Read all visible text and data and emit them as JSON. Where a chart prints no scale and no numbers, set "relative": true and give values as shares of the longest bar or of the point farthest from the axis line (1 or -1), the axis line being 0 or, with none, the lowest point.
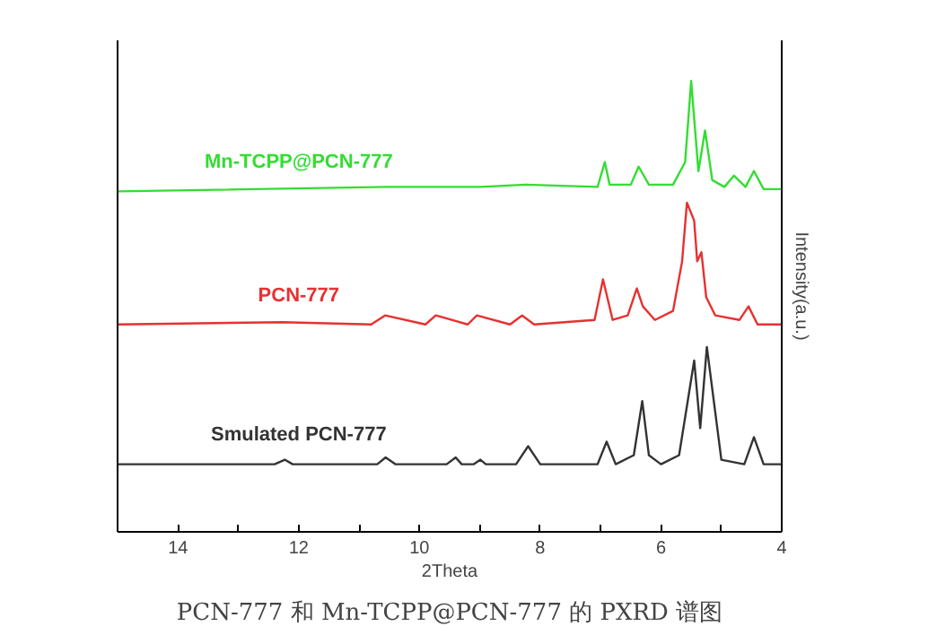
{
  "chart_data": {
    "type": "line",
    "relative": true,
    "title": "PCN-777 和 Mn-TCPP@PCN-777 的 PXRD 谱图",
    "xlabel": "2Theta",
    "ylabel": "Intensity(a.u.)",
    "xlim": [
      15,
      4
    ],
    "xticks": [
      {
        "value": 15,
        "label": null
      },
      14,
      {
        "value": 13,
        "label": null
      },
      12,
      {
        "value": 11,
        "label": null
      },
      10,
      {
        "value": 9,
        "label": null
      },
      8,
      {
        "value": 7,
        "label": null
      },
      6,
      {
        "value": 5,
        "label": null
      },
      4
    ],
    "grid": false,
    "line_style": "solid",
    "marker": "none",
    "series": [
      {
        "name": "Smulated PCN-777",
        "color": "#333333",
        "x": [
          4,
          4.3,
          4.46,
          4.62,
          5.0,
          5.24,
          5.35,
          5.45,
          5.7,
          6.0,
          6.2,
          6.31,
          6.45,
          6.75,
          6.9,
          7.05,
          8.0,
          8.2,
          8.4,
          8.9,
          8.99,
          9.1,
          9.3,
          9.4,
          9.55,
          10.4,
          10.56,
          10.7,
          12.1,
          12.23,
          12.4,
          15
        ],
        "values": [
          0.15,
          0.15,
          0.21,
          0.15,
          0.16,
          0.41,
          0.23,
          0.38,
          0.17,
          0.15,
          0.17,
          0.29,
          0.17,
          0.15,
          0.2,
          0.15,
          0.15,
          0.19,
          0.15,
          0.15,
          0.16,
          0.15,
          0.15,
          0.165,
          0.15,
          0.15,
          0.165,
          0.15,
          0.15,
          0.16,
          0.15,
          0.15
        ]
      },
      {
        "name": "PCN-777",
        "color": "#e83030",
        "x": [
          4,
          4.4,
          4.55,
          4.7,
          5.1,
          5.25,
          5.33,
          5.4,
          5.45,
          5.57,
          5.65,
          5.8,
          6.1,
          6.3,
          6.4,
          6.55,
          6.8,
          6.96,
          7.1,
          8.1,
          8.3,
          8.5,
          9.05,
          9.2,
          9.73,
          9.9,
          10.57,
          10.8,
          12.26,
          15
        ],
        "values": [
          0.46,
          0.46,
          0.5,
          0.47,
          0.48,
          0.52,
          0.62,
          0.6,
          0.69,
          0.73,
          0.6,
          0.49,
          0.47,
          0.5,
          0.54,
          0.48,
          0.47,
          0.56,
          0.47,
          0.46,
          0.48,
          0.46,
          0.48,
          0.46,
          0.48,
          0.46,
          0.48,
          0.46,
          0.465,
          0.46
        ]
      },
      {
        "name": "Mn-TCPP@PCN-777",
        "color": "#33dd33",
        "x": [
          4,
          4.3,
          4.46,
          4.6,
          4.79,
          4.95,
          5.15,
          5.27,
          5.38,
          5.5,
          5.6,
          5.8,
          6.2,
          6.37,
          6.5,
          6.85,
          6.93,
          7.05,
          8.24,
          8.99,
          9.4,
          10.54,
          15
        ],
        "values": [
          0.76,
          0.76,
          0.8,
          0.765,
          0.79,
          0.765,
          0.78,
          0.89,
          0.8,
          1.0,
          0.82,
          0.77,
          0.77,
          0.81,
          0.77,
          0.77,
          0.82,
          0.765,
          0.77,
          0.765,
          0.765,
          0.765,
          0.755
        ]
      }
    ]
  }
}
